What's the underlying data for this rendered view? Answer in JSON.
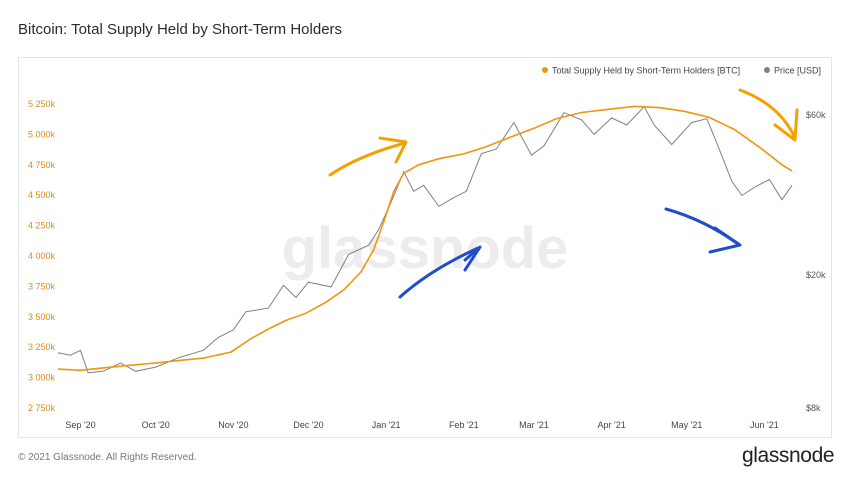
{
  "title": "Bitcoin: Total Supply Held by Short-Term Holders",
  "footer": "© 2021 Glassnode. All Rights Reserved.",
  "brand": "glassnode",
  "watermark": "glassnode",
  "colors": {
    "supply": "#f09412",
    "price": "#808080",
    "arrow_orange": "#f5a000",
    "arrow_blue": "#1f4fc8"
  },
  "chart_data": {
    "type": "line",
    "title": "Bitcoin: Total Supply Held by Short-Term Holders",
    "legend": {
      "position": "top-right",
      "items": [
        "Total Supply Held by Short-Term Holders [BTC]",
        "Price [USD]"
      ]
    },
    "x_ticks": [
      "Sep '20",
      "Oct '20",
      "Nov '20",
      "Dec '20",
      "Jan '21",
      "Feb '21",
      "Mar '21",
      "Apr '21",
      "May '21",
      "Jun '21"
    ],
    "x_range": [
      "2020-08-23",
      "2021-06-14"
    ],
    "y_left": {
      "ticks": [
        "2 750k",
        "3 000k",
        "3 250k",
        "3 500k",
        "3 750k",
        "4 000k",
        "4 250k",
        "4 500k",
        "4 750k",
        "5 000k",
        "5 250k"
      ],
      "range": [
        2750000,
        5300000
      ]
    },
    "y_right": {
      "ticks": [
        "$8k",
        "$20k",
        "$60k"
      ],
      "scale": "log",
      "range": [
        8000,
        65000
      ]
    },
    "grid": false,
    "series": [
      {
        "name": "Total Supply Held by Short-Term Holders [BTC]",
        "axis": "left",
        "points": [
          [
            "2020-08-23",
            3070000
          ],
          [
            "2020-09-01",
            3060000
          ],
          [
            "2020-09-10",
            3080000
          ],
          [
            "2020-09-20",
            3100000
          ],
          [
            "2020-10-01",
            3120000
          ],
          [
            "2020-10-10",
            3140000
          ],
          [
            "2020-10-20",
            3160000
          ],
          [
            "2020-10-31",
            3210000
          ],
          [
            "2020-11-08",
            3320000
          ],
          [
            "2020-11-15",
            3400000
          ],
          [
            "2020-11-22",
            3470000
          ],
          [
            "2020-11-30",
            3530000
          ],
          [
            "2020-12-08",
            3620000
          ],
          [
            "2020-12-15",
            3720000
          ],
          [
            "2020-12-22",
            3870000
          ],
          [
            "2020-12-27",
            4050000
          ],
          [
            "2020-12-31",
            4280000
          ],
          [
            "2021-01-04",
            4530000
          ],
          [
            "2021-01-08",
            4680000
          ],
          [
            "2021-01-14",
            4750000
          ],
          [
            "2021-01-22",
            4800000
          ],
          [
            "2021-02-01",
            4840000
          ],
          [
            "2021-02-10",
            4900000
          ],
          [
            "2021-02-20",
            4980000
          ],
          [
            "2021-03-01",
            5050000
          ],
          [
            "2021-03-10",
            5130000
          ],
          [
            "2021-03-20",
            5180000
          ],
          [
            "2021-04-01",
            5210000
          ],
          [
            "2021-04-10",
            5230000
          ],
          [
            "2021-04-20",
            5220000
          ],
          [
            "2021-04-30",
            5190000
          ],
          [
            "2021-05-10",
            5140000
          ],
          [
            "2021-05-20",
            5040000
          ],
          [
            "2021-05-31",
            4880000
          ],
          [
            "2021-06-08",
            4750000
          ],
          [
            "2021-06-12",
            4700000
          ]
        ]
      },
      {
        "name": "Price [USD]",
        "axis": "right",
        "points": [
          [
            "2020-08-23",
            11700
          ],
          [
            "2020-08-28",
            11500
          ],
          [
            "2020-09-01",
            11900
          ],
          [
            "2020-09-04",
            10200
          ],
          [
            "2020-09-10",
            10300
          ],
          [
            "2020-09-17",
            10900
          ],
          [
            "2020-09-23",
            10300
          ],
          [
            "2020-10-01",
            10600
          ],
          [
            "2020-10-10",
            11300
          ],
          [
            "2020-10-20",
            11900
          ],
          [
            "2020-10-26",
            13000
          ],
          [
            "2020-11-01",
            13700
          ],
          [
            "2020-11-06",
            15500
          ],
          [
            "2020-11-15",
            15900
          ],
          [
            "2020-11-21",
            18600
          ],
          [
            "2020-11-26",
            17100
          ],
          [
            "2020-12-01",
            19000
          ],
          [
            "2020-12-10",
            18400
          ],
          [
            "2020-12-17",
            23000
          ],
          [
            "2020-12-25",
            24500
          ],
          [
            "2020-12-29",
            27300
          ],
          [
            "2021-01-03",
            33000
          ],
          [
            "2021-01-08",
            40600
          ],
          [
            "2021-01-12",
            35500
          ],
          [
            "2021-01-16",
            37000
          ],
          [
            "2021-01-22",
            32000
          ],
          [
            "2021-01-28",
            34000
          ],
          [
            "2021-02-02",
            35500
          ],
          [
            "2021-02-08",
            46000
          ],
          [
            "2021-02-14",
            47500
          ],
          [
            "2021-02-21",
            57000
          ],
          [
            "2021-02-28",
            45500
          ],
          [
            "2021-03-05",
            48500
          ],
          [
            "2021-03-13",
            61000
          ],
          [
            "2021-03-20",
            58000
          ],
          [
            "2021-03-25",
            52500
          ],
          [
            "2021-04-01",
            58800
          ],
          [
            "2021-04-07",
            56000
          ],
          [
            "2021-04-14",
            63500
          ],
          [
            "2021-04-18",
            56000
          ],
          [
            "2021-04-25",
            49000
          ],
          [
            "2021-05-03",
            57000
          ],
          [
            "2021-05-09",
            58500
          ],
          [
            "2021-05-13",
            49500
          ],
          [
            "2021-05-19",
            38000
          ],
          [
            "2021-05-23",
            34500
          ],
          [
            "2021-05-28",
            36500
          ],
          [
            "2021-06-03",
            38500
          ],
          [
            "2021-06-08",
            33500
          ],
          [
            "2021-06-12",
            37000
          ]
        ]
      }
    ],
    "annotations": [
      {
        "type": "arrow",
        "color": "orange",
        "direction": "up-right",
        "near": "Dec '20"
      },
      {
        "type": "arrow",
        "color": "orange",
        "direction": "down",
        "near": "Jun '21"
      },
      {
        "type": "arrow",
        "color": "blue",
        "direction": "up-right",
        "near": "Feb '21"
      },
      {
        "type": "arrow",
        "color": "blue",
        "direction": "down-right",
        "near": "May '21"
      }
    ]
  }
}
